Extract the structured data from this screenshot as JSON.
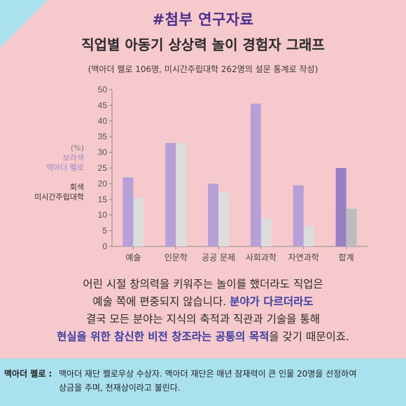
{
  "header": {
    "tag": "#첨부 연구자료",
    "title": "직업별 아동기 상상력 놀이 경험자 그래프",
    "subtitle": "(맥아더 펠로 106명, 미시간주립대학 262명의 설문 통계로 작성)"
  },
  "legend": {
    "unit": "(%)",
    "series1_color_word": "보라색",
    "series1_name": "맥아더 펠로",
    "series2_color_word": "회색",
    "series2_name": "미시간주립대학"
  },
  "chart_data": {
    "type": "bar",
    "categories": [
      "예술",
      "인문학",
      "공공 문제",
      "사회과학",
      "자연과학",
      "합계"
    ],
    "series": [
      {
        "name": "맥아더 펠로",
        "values": [
          22,
          33,
          20,
          45.5,
          19.5,
          25
        ],
        "colors": [
          "#b7a0d8",
          "#b7a0d8",
          "#b7a0d8",
          "#b7a0d8",
          "#b7a0d8",
          "#9880c4"
        ]
      },
      {
        "name": "미시간주립대학",
        "values": [
          15.5,
          33,
          17.5,
          9,
          6.5,
          12
        ],
        "colors": [
          "#dcdcdc",
          "#dcdcdc",
          "#dcdcdc",
          "#dcdcdc",
          "#dcdcdc",
          "#bcbcbc"
        ]
      }
    ],
    "ylim": [
      0,
      50
    ],
    "yticks": [
      0,
      5,
      10,
      15,
      20,
      25,
      30,
      35,
      40,
      45,
      50
    ],
    "grid": false,
    "legend_position": "left"
  },
  "body": {
    "line1": "어린 시절 창의력을 키워주는 놀이를 했더라도 직업은",
    "line2a": "예술 쪽에 편중되지 않습니다. ",
    "line2b": "분야가 다르더라도",
    "line3": "결국 모든 분야는 지식의 축적과 직관과 기술을 통해",
    "line4a": "현실을 위한 참신한 비전 창조라는 공통의 목적",
    "line4b": "을 갖기 때문이죠."
  },
  "footer": {
    "term": "맥아더 펠로 :",
    "line1": "맥아더 재단 펠로우상 수상자. 맥아더 재단은 매년 잠재력이 큰 인물 20명을 선정하여",
    "line2": "상금을 주며, 천재상이라고 불린다."
  }
}
